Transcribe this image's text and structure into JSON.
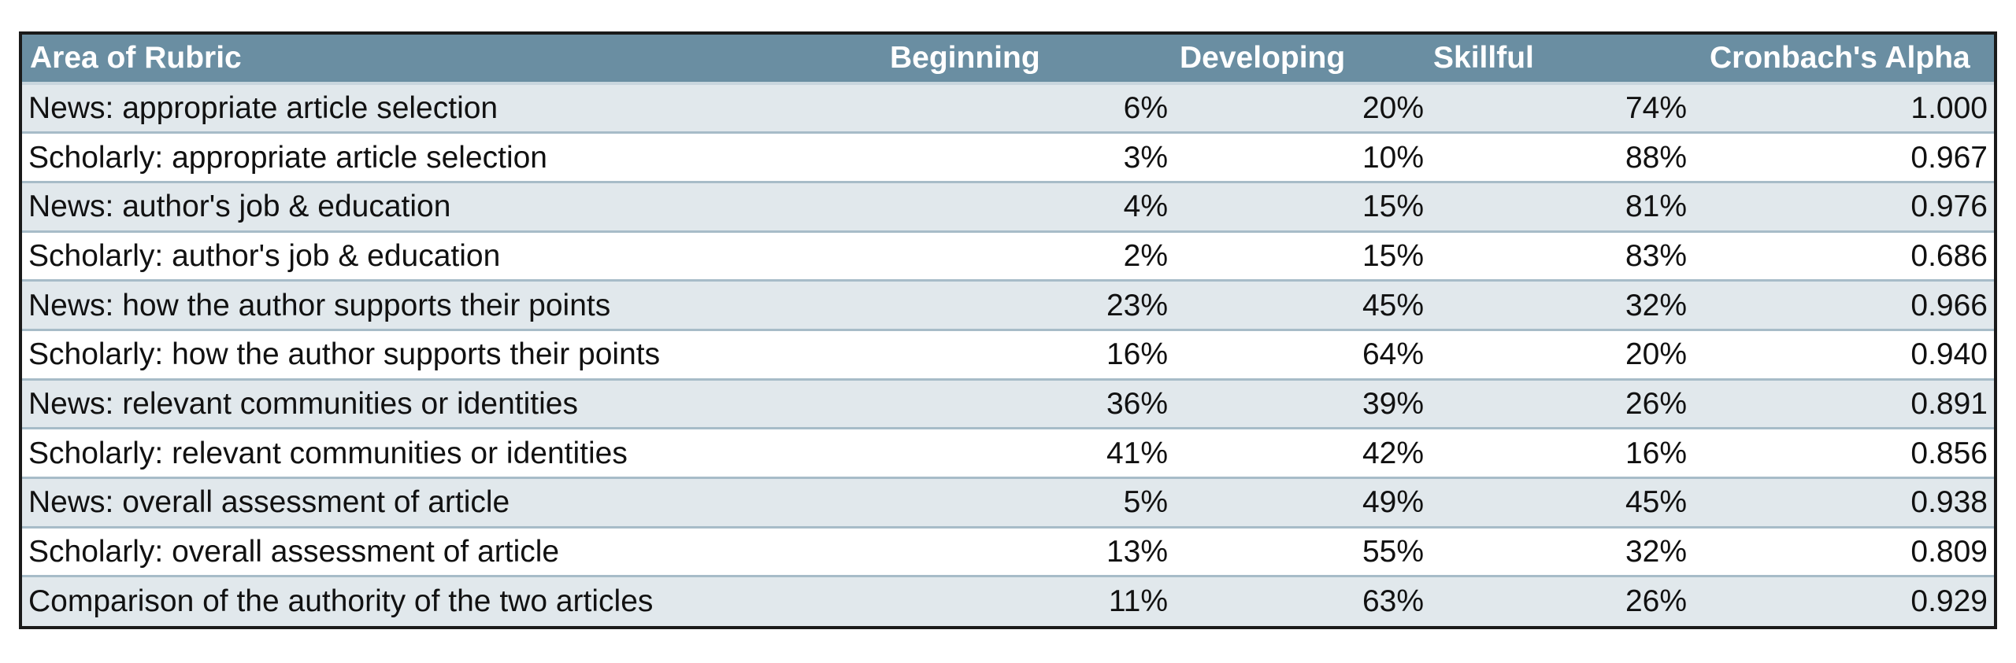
{
  "table": {
    "headers": {
      "area": "Area of Rubric",
      "beginning": "Beginning",
      "developing": "Developing",
      "skillful": "Skillful",
      "alpha": "Cronbach's Alpha"
    },
    "rows": [
      {
        "area": "News: appropriate article selection",
        "beginning": "6%",
        "developing": "20%",
        "skillful": "74%",
        "alpha": "1.000"
      },
      {
        "area": "Scholarly: appropriate article selection",
        "beginning": "3%",
        "developing": "10%",
        "skillful": "88%",
        "alpha": "0.967"
      },
      {
        "area": "News: author's job & education",
        "beginning": "4%",
        "developing": "15%",
        "skillful": "81%",
        "alpha": "0.976"
      },
      {
        "area": "Scholarly: author's job & education",
        "beginning": "2%",
        "developing": "15%",
        "skillful": "83%",
        "alpha": "0.686"
      },
      {
        "area": "News: how the author supports their points",
        "beginning": "23%",
        "developing": "45%",
        "skillful": "32%",
        "alpha": "0.966"
      },
      {
        "area": "Scholarly: how the author supports their points",
        "beginning": "16%",
        "developing": "64%",
        "skillful": "20%",
        "alpha": "0.940"
      },
      {
        "area": "News: relevant communities or identities",
        "beginning": "36%",
        "developing": "39%",
        "skillful": "26%",
        "alpha": "0.891"
      },
      {
        "area": "Scholarly: relevant communities or identities",
        "beginning": "41%",
        "developing": "42%",
        "skillful": "16%",
        "alpha": "0.856"
      },
      {
        "area": "News: overall assessment of article",
        "beginning": "5%",
        "developing": "49%",
        "skillful": "45%",
        "alpha": "0.938"
      },
      {
        "area": "Scholarly: overall assessment of article",
        "beginning": "13%",
        "developing": "55%",
        "skillful": "32%",
        "alpha": "0.809"
      },
      {
        "area": "Comparison of the authority of the two articles",
        "beginning": "11%",
        "developing": "63%",
        "skillful": "26%",
        "alpha": "0.929"
      }
    ]
  },
  "colors": {
    "header_bg": "#6a8ea2",
    "band_bg": "#e1e8ec",
    "rule": "#a7bcc8"
  }
}
